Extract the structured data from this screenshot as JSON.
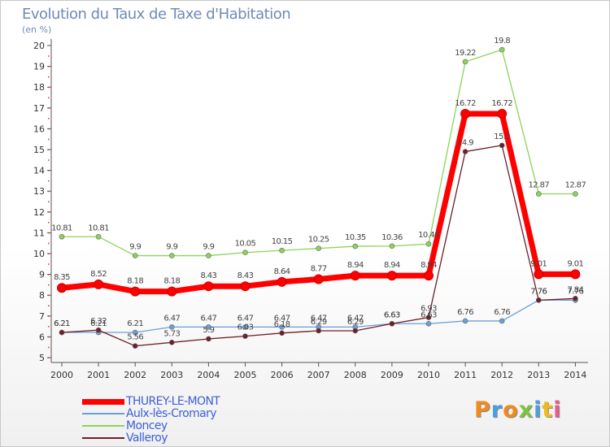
{
  "header": {
    "title": "Evolution du Taux de Taxe d'Habitation",
    "subtitle": "(en %)"
  },
  "brand": {
    "text": "Proxiti",
    "colors": [
      "#f08a1c",
      "#4a9fe0",
      "#f08a1c",
      "#7fc241",
      "#4a9fe0",
      "#f0b91c",
      "#e85a8a"
    ]
  },
  "chart_data": {
    "type": "line",
    "x": [
      "2000",
      "2001",
      "2002",
      "2003",
      "2004",
      "2005",
      "2006",
      "2007",
      "2008",
      "2009",
      "2010",
      "2011",
      "2012",
      "2013",
      "2014"
    ],
    "ylim": [
      5,
      20
    ],
    "yticks": [
      5,
      6,
      7,
      8,
      9,
      10,
      11,
      12,
      13,
      14,
      15,
      16,
      17,
      18,
      19,
      20
    ],
    "grid": false,
    "legend_position": "bottom-left",
    "series": [
      {
        "name": "THUREY-LE-MONT",
        "color": "#ff0000",
        "values": [
          8.35,
          8.52,
          8.18,
          8.18,
          8.43,
          8.43,
          8.64,
          8.77,
          8.94,
          8.94,
          8.94,
          16.72,
          16.72,
          9.01,
          9.01
        ],
        "labels": [
          "8.35",
          "8.52",
          "8.18",
          "8.18",
          "8.43",
          "8.43",
          "8.64",
          "8.77",
          "8.94",
          "8.94",
          "8.94",
          "16.72",
          "16.72",
          "9.01",
          "9.01"
        ]
      },
      {
        "name": "Aulx-lès-Cromary",
        "color": "#6aa0d6",
        "values": [
          6.21,
          6.21,
          6.21,
          6.47,
          6.47,
          6.47,
          6.47,
          6.47,
          6.47,
          6.63,
          6.63,
          6.76,
          6.76,
          7.76,
          7.76
        ],
        "labels": [
          "6.21",
          "6.21",
          "6.21",
          "6.47",
          "6.47",
          "6.47",
          "6.47",
          "6.47",
          "6.47",
          "6.63",
          "6.63",
          "6.76",
          "6.76",
          "7.76",
          "7.76"
        ]
      },
      {
        "name": "Moncey",
        "color": "#8cd35a",
        "values": [
          10.81,
          10.81,
          9.9,
          9.9,
          9.9,
          10.05,
          10.15,
          10.25,
          10.35,
          10.36,
          10.46,
          19.22,
          19.8,
          12.87,
          12.87
        ],
        "labels": [
          "10.81",
          "10.81",
          "9.9",
          "9.9",
          "9.9",
          "10.05",
          "10.15",
          "10.25",
          "10.35",
          "10.36",
          "10.46",
          "19.22",
          "19.8",
          "12.87",
          "12.87"
        ]
      },
      {
        "name": "Valleroy",
        "color": "#6e1e2a",
        "values": [
          6.21,
          6.32,
          5.56,
          5.73,
          5.9,
          6.03,
          6.18,
          6.29,
          6.29,
          6.63,
          6.93,
          14.9,
          15.2,
          7.76,
          7.84
        ],
        "labels": [
          "6.21",
          "6.32",
          "5.56",
          "5.73",
          "5.9",
          "6.03",
          "6.18",
          "6.29",
          "6.29",
          "6.63",
          "6.93",
          "14.9",
          "15.2",
          "7.76",
          "7.84"
        ]
      }
    ]
  }
}
